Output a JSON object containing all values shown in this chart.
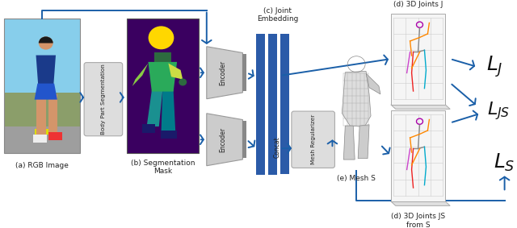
{
  "fig_width": 6.4,
  "fig_height": 2.83,
  "dpi": 100,
  "bg_color": "#FFFFFF",
  "arrow_color": "#1A5FA8",
  "blue_bar_color": "#2B5BA8",
  "encoder_face": "#C8C8C8",
  "encoder_edge": "#999999",
  "mesh_reg_face": "#CCCCCC",
  "seg_bg": "#3A0060",
  "rgb_sky": "#87CEEB",
  "rgb_road": "#A0A0A0",
  "labels": {
    "a": "(a) RGB Image",
    "b": "(b) Segmentation\nMask",
    "c": "(c) Joint\nEmbedding",
    "d_top": "(d) 3D Joints J",
    "d_bot": "(d) 3D Joints JS\nfrom S",
    "e": "(e) Mesh S",
    "body_seg": "Body Part Segmentation",
    "encoder_top": "Encoder",
    "encoder_bot": "Encoder",
    "concat": "Concat",
    "mesh_reg": "Mesh Regularizer",
    "L_J": "$\\mathit{L}_J$",
    "L_JS": "$\\mathit{L}_{JS}$",
    "L_S": "$\\mathit{L}_S$"
  }
}
